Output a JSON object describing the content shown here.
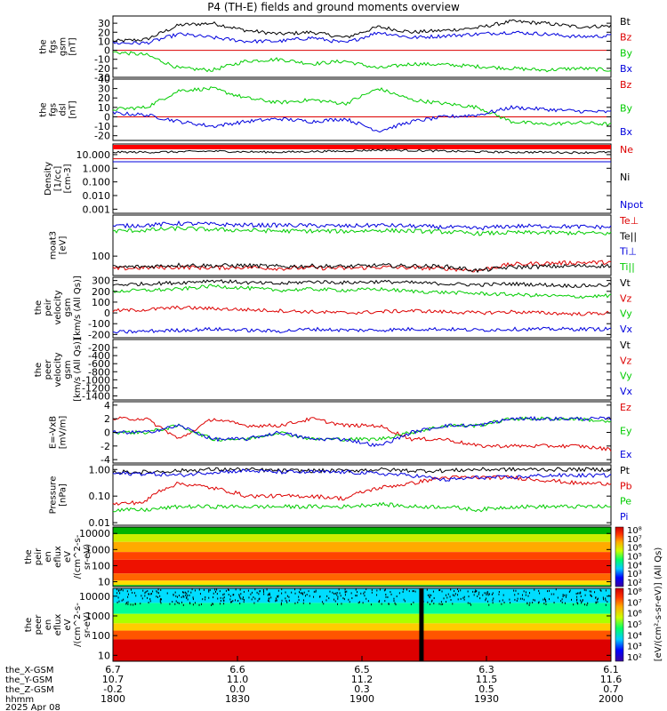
{
  "chart_data": {
    "type": "line",
    "title": "P4 (TH-E) fields and ground moments overview",
    "date": "2025 Apr 08",
    "time_axis": {
      "hhmm": [
        "1800",
        "1830",
        "1900",
        "1930",
        "2000"
      ],
      "x_gsm": [
        "6.7",
        "6.6",
        "6.5",
        "6.3",
        "6.1"
      ],
      "y_gsm": [
        "10.7",
        "11.0",
        "11.2",
        "11.5",
        "11.6"
      ],
      "z_gsm": [
        "-0.2",
        "0.0",
        "0.3",
        "0.5",
        "0.7"
      ],
      "row_labels": [
        "the_X-GSM",
        "the_Y-GSM",
        "the_Z-GSM",
        "hhmm"
      ]
    },
    "panels": [
      {
        "id": "fgs_gsm",
        "ylabel": [
          "the",
          "fgs",
          "gsm",
          "[nT]"
        ],
        "scale": "linear",
        "ylim": [
          -30,
          38
        ],
        "ticks": [
          30,
          20,
          10,
          0,
          -10,
          -20,
          -30
        ],
        "tick_labels": [
          "30",
          "20",
          "10",
          "0",
          "-10",
          "-20",
          "-30"
        ],
        "series": [
          {
            "name": "Bt",
            "color": "#000000",
            "values": [
              10,
              12,
              28,
              30,
              22,
              18,
              20,
              14,
              26,
              20,
              22,
              25,
              32,
              30,
              26,
              27
            ]
          },
          {
            "name": "Bz",
            "color": "#dd0000",
            "values": [
              0,
              0,
              0,
              0,
              0,
              0,
              0,
              0,
              0,
              0,
              0,
              0,
              0,
              0,
              0,
              0
            ]
          },
          {
            "name": "By",
            "color": "#00cc00",
            "values": [
              -2,
              -5,
              -20,
              -22,
              -12,
              -10,
              -15,
              -12,
              -20,
              -15,
              -16,
              -18,
              -20,
              -22,
              -20,
              -22
            ]
          },
          {
            "name": "Bx",
            "color": "#0000dd",
            "values": [
              8,
              8,
              18,
              14,
              10,
              10,
              14,
              8,
              20,
              14,
              16,
              18,
              20,
              18,
              15,
              16
            ]
          }
        ]
      },
      {
        "id": "fgs_dsl",
        "ylabel": [
          "the",
          "fgs",
          "dsl",
          "[nT]"
        ],
        "scale": "linear",
        "ylim": [
          -25,
          40
        ],
        "ticks": [
          40,
          30,
          20,
          10,
          0,
          -10,
          -20
        ],
        "tick_labels": [
          "40",
          "30",
          "20",
          "10",
          "0",
          "-10",
          "-20"
        ],
        "series": [
          {
            "name": "Bz",
            "color": "#dd0000",
            "values": [
              0,
              0,
              0,
              0,
              0,
              0,
              0,
              0,
              0,
              0,
              0,
              0,
              0,
              0,
              0,
              0
            ]
          },
          {
            "name": "By",
            "color": "#00cc00",
            "values": [
              8,
              10,
              28,
              30,
              20,
              15,
              18,
              14,
              30,
              18,
              14,
              10,
              -5,
              -8,
              -6,
              -8
            ]
          },
          {
            "name": "Bx",
            "color": "#0000dd",
            "values": [
              4,
              2,
              -5,
              -10,
              -5,
              -2,
              -5,
              -2,
              -15,
              -5,
              0,
              2,
              10,
              8,
              6,
              5
            ]
          }
        ]
      },
      {
        "id": "density",
        "ylabel": [
          "Density",
          "[1/cc]",
          "[cm-3]"
        ],
        "scale": "log",
        "ylim": [
          0.0005,
          60
        ],
        "ticks": [
          10,
          1,
          0.1,
          0.01,
          0.001
        ],
        "tick_labels": [
          "10.000",
          "1.000",
          "0.100",
          "0.010",
          "0.001"
        ],
        "series": [
          {
            "name": "Ne",
            "color": "#dd0000",
            "values": [
              5,
              5,
              5,
              5,
              5,
              5,
              5,
              5,
              5,
              5,
              5,
              5,
              5,
              5,
              5,
              5
            ]
          },
          {
            "name": "Ni",
            "color": "#000000",
            "values": [
              15,
              15,
              16,
              18,
              16,
              15,
              17,
              18,
              22,
              20,
              18,
              16,
              15,
              15,
              14,
              15
            ]
          },
          {
            "name": "Npot",
            "color": "#0000dd",
            "values": [
              3,
              3,
              3,
              3,
              3,
              3,
              3,
              3,
              3,
              3,
              3,
              3,
              3,
              3,
              3,
              3
            ]
          }
        ]
      },
      {
        "id": "temperature",
        "ylabel": [
          "moat3",
          "[eV]"
        ],
        "scale": "log",
        "ylim": [
          20,
          3000
        ],
        "ticks": [
          100
        ],
        "tick_labels": [
          "100"
        ],
        "series": [
          {
            "name": "Te⊥",
            "color": "#dd0000",
            "values": [
              35,
              38,
              40,
              38,
              40,
              36,
              38,
              36,
              40,
              38,
              36,
              30,
              50,
              55,
              58,
              60
            ]
          },
          {
            "name": "Te||",
            "color": "#000000",
            "values": [
              40,
              42,
              48,
              45,
              46,
              42,
              44,
              42,
              46,
              44,
              42,
              30,
              40,
              42,
              44,
              45
            ]
          },
          {
            "name": "Ti⊥",
            "color": "#0000dd",
            "values": [
              1200,
              1300,
              1500,
              1400,
              1300,
              1300,
              1250,
              1200,
              1300,
              1200,
              1100,
              1000,
              1200,
              1200,
              1150,
              1100
            ]
          },
          {
            "name": "Ti||",
            "color": "#00cc00",
            "values": [
              800,
              850,
              1000,
              900,
              850,
              800,
              800,
              780,
              850,
              800,
              750,
              650,
              700,
              700,
              680,
              650
            ]
          }
        ]
      },
      {
        "id": "peir_velocity",
        "ylabel": [
          "the",
          "peir",
          "velocity",
          "gsm",
          "[km/s (All Qs)]"
        ],
        "scale": "linear",
        "ylim": [
          -230,
          330
        ],
        "ticks": [
          300,
          200,
          100,
          0,
          -100,
          -200
        ],
        "tick_labels": [
          "300",
          "200",
          "100",
          "0",
          "-100",
          "-200"
        ],
        "series": [
          {
            "name": "Vt",
            "color": "#000000",
            "values": [
              260,
              270,
              280,
              300,
              280,
              270,
              290,
              280,
              290,
              280,
              270,
              260,
              270,
              260,
              250,
              260
            ]
          },
          {
            "name": "Vz",
            "color": "#dd0000",
            "values": [
              20,
              30,
              50,
              40,
              30,
              20,
              10,
              0,
              10,
              20,
              10,
              0,
              10,
              0,
              -10,
              0
            ]
          },
          {
            "name": "Vy",
            "color": "#00cc00",
            "values": [
              200,
              210,
              220,
              250,
              230,
              210,
              220,
              210,
              220,
              200,
              190,
              180,
              170,
              160,
              150,
              160
            ]
          },
          {
            "name": "Vx",
            "color": "#0000dd",
            "values": [
              -180,
              -170,
              -160,
              -150,
              -160,
              -170,
              -150,
              -160,
              -160,
              -150,
              -150,
              -160,
              -150,
              -150,
              -150,
              -150
            ]
          }
        ]
      },
      {
        "id": "peer_velocity",
        "ylabel": [
          "the",
          "peer",
          "velocity",
          "gsm",
          "[km/s (All Qs)]"
        ],
        "scale": "linear",
        "ylim": [
          -1500,
          0
        ],
        "ticks": [
          -200,
          -400,
          -600,
          -800,
          -1000,
          -1200,
          -1400
        ],
        "tick_labels": [
          "-200",
          "-400",
          "-600",
          "-800",
          "-1000",
          "-1200",
          "-1400"
        ],
        "series": [
          {
            "name": "Vt",
            "color": "#000000",
            "values": []
          },
          {
            "name": "Vz",
            "color": "#dd0000",
            "values": []
          },
          {
            "name": "Vy",
            "color": "#00cc00",
            "values": []
          },
          {
            "name": "Vx",
            "color": "#0000dd",
            "values": []
          }
        ]
      },
      {
        "id": "e_field",
        "ylabel": [
          "E=-VxB",
          "[mV/m]"
        ],
        "scale": "linear",
        "ylim": [
          -4.5,
          4.5
        ],
        "ticks": [
          4,
          2,
          0,
          -2,
          -4
        ],
        "tick_labels": [
          "4",
          "2",
          "0",
          "-2",
          "-4"
        ],
        "series": [
          {
            "name": "Ez",
            "color": "#dd0000",
            "values": [
              2,
              2,
              -1,
              2,
              1,
              1,
              2,
              1,
              1,
              -1,
              -1,
              -2,
              -2,
              -2,
              -2,
              -2.5
            ]
          },
          {
            "name": "Ey",
            "color": "#00cc00",
            "values": [
              0,
              0,
              1,
              -1,
              -1,
              0,
              -1,
              -1,
              -1,
              0,
              1,
              1,
              2,
              2,
              2,
              1.5
            ]
          },
          {
            "name": "Ex",
            "color": "#0000dd",
            "values": [
              0,
              0,
              1,
              -1,
              -1,
              0,
              -1,
              -1,
              -2,
              0,
              1,
              1,
              2,
              2,
              2,
              2
            ]
          }
        ]
      },
      {
        "id": "pressure",
        "ylabel": [
          "Pressure",
          "[nPa]"
        ],
        "scale": "log",
        "ylim": [
          0.008,
          1.5
        ],
        "ticks": [
          1,
          0.1,
          0.01
        ],
        "tick_labels": [
          "1.00",
          "0.10",
          "0.01"
        ],
        "series": [
          {
            "name": "Pt",
            "color": "#000000",
            "values": [
              0.8,
              0.8,
              0.9,
              1.0,
              1.0,
              0.9,
              0.9,
              0.9,
              1.0,
              0.9,
              0.9,
              1.0,
              1.0,
              1.0,
              1.0,
              1.0
            ]
          },
          {
            "name": "Pb",
            "color": "#dd0000",
            "values": [
              0.05,
              0.06,
              0.3,
              0.2,
              0.1,
              0.1,
              0.1,
              0.08,
              0.2,
              0.3,
              0.5,
              0.5,
              0.5,
              0.4,
              0.3,
              0.3
            ]
          },
          {
            "name": "Pe",
            "color": "#00cc00",
            "values": [
              0.03,
              0.03,
              0.04,
              0.04,
              0.04,
              0.04,
              0.04,
              0.04,
              0.05,
              0.04,
              0.04,
              0.03,
              0.04,
              0.04,
              0.04,
              0.04
            ]
          },
          {
            "name": "Pi",
            "color": "#0000dd",
            "values": [
              0.7,
              0.7,
              0.6,
              0.8,
              0.9,
              0.8,
              0.8,
              0.8,
              0.7,
              0.6,
              0.4,
              0.5,
              0.5,
              0.6,
              0.6,
              0.6
            ]
          }
        ]
      },
      {
        "id": "peir_eflux",
        "type": "heatmap",
        "ylabel": [
          "the",
          "peir",
          "en",
          "eflux",
          "eV",
          "/(cm^2-s-",
          "sr-eV)"
        ],
        "scale": "log",
        "ylim": [
          5,
          25000
        ],
        "ticks": [
          10000,
          1000,
          100,
          10
        ],
        "tick_labels": [
          "10000",
          "1000",
          "100",
          "10"
        ]
      },
      {
        "id": "peer_eflux",
        "type": "heatmap",
        "ylabel": [
          "the",
          "peer",
          "en",
          "eflux",
          "eV",
          "/(cm^2-s-",
          "sr-eV)"
        ],
        "scale": "log",
        "ylim": [
          5,
          25000
        ],
        "ticks": [
          10000,
          1000,
          100,
          10
        ],
        "tick_labels": [
          "10000",
          "1000",
          "100",
          "10"
        ]
      }
    ],
    "colorbar": {
      "tick_labels": [
        "10^8",
        "10^7",
        "10^6",
        "10^5",
        "10^4",
        "10^3",
        "10^2"
      ],
      "tick_labels_lower": [
        "10^8",
        "10^7",
        "10^6",
        "10^5",
        "10^4",
        "10^3",
        "10^2"
      ],
      "label": "[eV/(cm^2-s-sr-eV)]",
      "label2": "(All Qs)"
    }
  }
}
